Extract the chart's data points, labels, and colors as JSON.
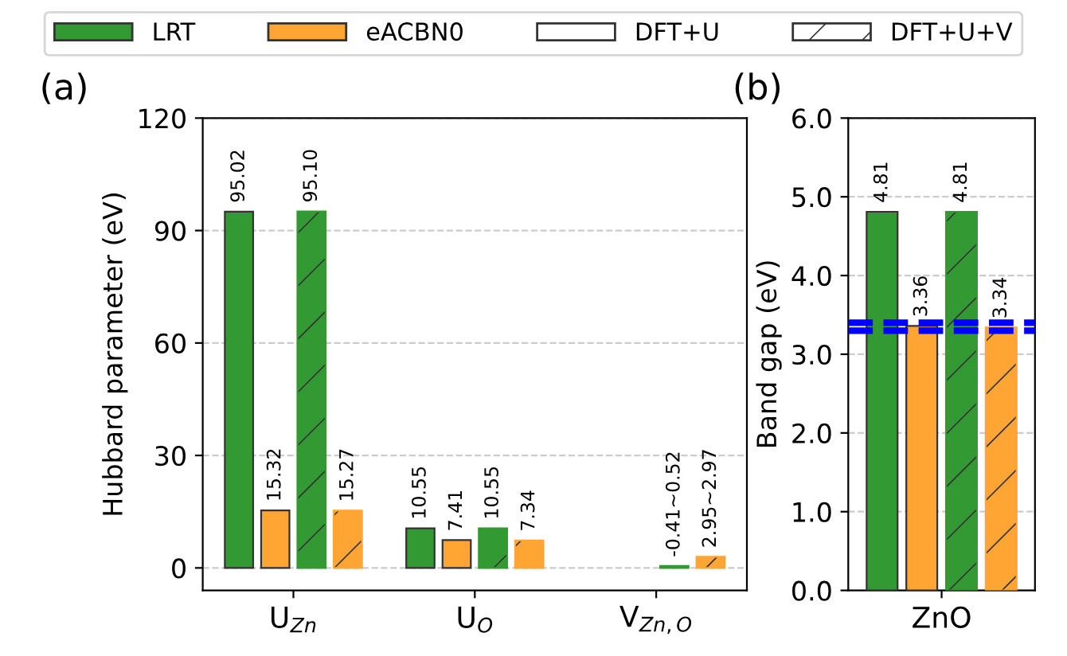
{
  "chart_data": [
    {
      "type": "bar",
      "title": "(a)",
      "ylabel": "Hubbard parameter (eV)",
      "categories": [
        "U$_{Zn}$",
        "U$_{O}$",
        "V$_{Zn,O}$"
      ],
      "ylim": [
        -6,
        120
      ],
      "yticks": [
        0,
        30,
        60,
        90,
        120
      ],
      "grid": "y",
      "legend": "top",
      "annotations": [
        "DFT+U",
        "DFT+U+V"
      ],
      "series": [
        {
          "name": "LRT",
          "color": "#339933",
          "values": [
            95.02,
            10.55,
            null
          ],
          "value_labels": [
            "95.02",
            "10.55",
            null
          ]
        },
        {
          "name": "eACBN0",
          "color": "#ffa533",
          "values": [
            15.32,
            7.41,
            null
          ],
          "value_labels": [
            "15.32",
            "7.41",
            null
          ]
        },
        {
          "color": "#339933",
          "values": [
            95.1,
            10.55,
            0.52
          ],
          "value_labels": [
            "95.10",
            "10.55",
            "-0.41~0.52"
          ]
        },
        {
          "color": "#ffa533",
          "values": [
            15.27,
            7.34,
            2.97
          ],
          "value_labels": [
            "15.27",
            "7.34",
            "2.95~2.97"
          ]
        }
      ]
    },
    {
      "type": "bar",
      "title": "(b)",
      "ylabel": "Band gap (eV)",
      "categories": [
        "ZnO"
      ],
      "ylim": [
        0,
        6
      ],
      "yticks": [
        {
          "value": 0,
          "label": "0.0"
        },
        {
          "value": 1,
          "label": "1.0"
        },
        {
          "value": 2,
          "label": "2.0"
        },
        {
          "value": 3,
          "label": "3.0"
        },
        {
          "value": 4,
          "label": "4.0"
        },
        {
          "value": 5,
          "label": "5.0"
        },
        {
          "value": 6,
          "label": "6.0"
        }
      ],
      "grid": "y",
      "data_labels": true,
      "ref_lines": [
        {
          "axis": "y",
          "value": 3.3,
          "color": "#0000ff",
          "line_style": "dashed"
        },
        {
          "axis": "y",
          "value": 3.4,
          "color": "#0000ff",
          "line_style": "dashed"
        }
      ],
      "series": [
        {
          "color": "#339933",
          "values": [
            4.81
          ]
        },
        {
          "color": "#ffa533",
          "values": [
            3.36
          ]
        },
        {
          "color": "#339933",
          "values": [
            4.81
          ]
        },
        {
          "color": "#ffa533",
          "values": [
            3.34
          ]
        }
      ]
    }
  ]
}
